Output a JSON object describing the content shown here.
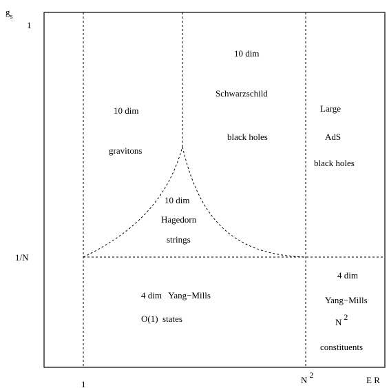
{
  "axes": {
    "y_label": "g",
    "y_label_sub": "s",
    "y_tick_top": "1",
    "y_tick_mid": "1/N",
    "x_tick_left": "1",
    "x_tick_mid": "N",
    "x_tick_mid_sup": "2",
    "x_label": "E R"
  },
  "regions": {
    "gravitons": {
      "line1": "10 dim",
      "line2": "gravitons"
    },
    "schwarzschild": {
      "line1": "10 dim",
      "line2": "Schwarzschild",
      "line3": "black  holes"
    },
    "ads": {
      "line1": "Large",
      "line2": "AdS",
      "line3": "black holes"
    },
    "hagedorn": {
      "line1": "10 dim",
      "line2": "Hagedorn",
      "line3": "strings"
    },
    "yang_mills_4d": {
      "line1": "4 dim   Yang−Mills",
      "line2": "O(1)  states"
    },
    "constituents": {
      "line1": "4 dim",
      "line2": "Yang−Mills",
      "line3_base": "N",
      "line3_sup": "2",
      "line4": "constituents"
    }
  }
}
